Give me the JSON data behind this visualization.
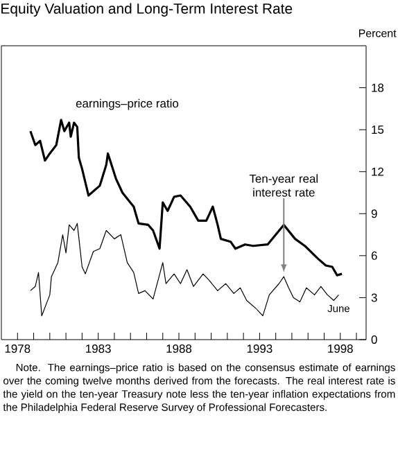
{
  "chart_data": {
    "type": "line",
    "title": "Equity Valuation and Long-Term Interest Rate",
    "ylabel": "Percent",
    "xlim": [
      1977,
      1999.6
    ],
    "ylim": [
      0,
      21
    ],
    "xticks": [
      1978,
      {
        "value": 1979,
        "label": null
      },
      {
        "value": 1980,
        "label": null
      },
      {
        "value": 1981,
        "label": null
      },
      {
        "value": 1982,
        "label": null
      },
      1983,
      {
        "value": 1984,
        "label": null
      },
      {
        "value": 1985,
        "label": null
      },
      {
        "value": 1986,
        "label": null
      },
      {
        "value": 1987,
        "label": null
      },
      1988,
      {
        "value": 1989,
        "label": null
      },
      {
        "value": 1990,
        "label": null
      },
      {
        "value": 1991,
        "label": null
      },
      {
        "value": 1992,
        "label": null
      },
      1993,
      {
        "value": 1994,
        "label": null
      },
      {
        "value": 1995,
        "label": null
      },
      {
        "value": 1996,
        "label": null
      },
      {
        "value": 1997,
        "label": null
      },
      1998,
      {
        "value": 1999,
        "label": null
      }
    ],
    "yticks": [
      0,
      3,
      6,
      9,
      12,
      15,
      18
    ],
    "marker": "none",
    "series": [
      {
        "name": "earnings–price ratio",
        "color": "#000000",
        "x": [
          1978.8,
          1979.1,
          1979.4,
          1979.7,
          1980.0,
          1980.4,
          1980.7,
          1980.9,
          1981.2,
          1981.3,
          1981.5,
          1981.7,
          1981.8,
          1982.0,
          1982.4,
          1983.1,
          1983.5,
          1983.6,
          1984.1,
          1984.5,
          1985.2,
          1985.5,
          1986.1,
          1986.4,
          1986.8,
          1987.0,
          1987.3,
          1987.7,
          1988.1,
          1988.7,
          1989.2,
          1989.7,
          1990.1,
          1990.4,
          1990.6,
          1991.2,
          1991.5,
          1992.1,
          1992.6,
          1993.5,
          1994.5,
          1995.2,
          1995.8,
          1996.6,
          1997.1,
          1997.5,
          1997.8,
          1998.1
        ],
        "values": [
          14.9,
          13.9,
          14.2,
          12.8,
          13.3,
          13.9,
          15.7,
          14.9,
          15.5,
          14.5,
          15.5,
          15.2,
          13.0,
          12.2,
          10.3,
          11.0,
          12.5,
          13.3,
          11.5,
          10.5,
          9.5,
          8.3,
          8.2,
          7.8,
          6.5,
          9.8,
          9.2,
          10.2,
          10.3,
          9.5,
          8.5,
          8.5,
          9.5,
          8.2,
          7.2,
          7.0,
          6.5,
          6.8,
          6.7,
          6.8,
          8.2,
          7.2,
          6.7,
          5.8,
          5.3,
          5.2,
          4.6,
          4.7
        ]
      },
      {
        "color": "#000000",
        "x": [
          1978.8,
          1979.1,
          1979.3,
          1979.5,
          1980.0,
          1980.1,
          1980.5,
          1980.8,
          1981.0,
          1981.2,
          1981.5,
          1981.7,
          1982.0,
          1982.2,
          1982.7,
          1983.1,
          1983.5,
          1984.0,
          1984.4,
          1984.8,
          1985.2,
          1985.5,
          1985.9,
          1986.4,
          1986.7,
          1987.0,
          1987.2,
          1987.7,
          1988.1,
          1988.5,
          1988.9,
          1989.5,
          1989.9,
          1990.4,
          1990.9,
          1991.4,
          1991.8,
          1992.2,
          1992.8,
          1993.2,
          1993.6,
          1994.2,
          1994.5,
          1994.8,
          1995.1,
          1995.5,
          1995.9,
          1996.4,
          1996.8,
          1997.2,
          1997.6,
          1997.9
        ],
        "values": [
          3.5,
          3.8,
          4.8,
          1.7,
          3.2,
          4.5,
          5.5,
          7.5,
          6.2,
          8.2,
          7.8,
          8.3,
          5.2,
          4.7,
          6.3,
          6.5,
          7.8,
          7.2,
          7.5,
          5.5,
          4.8,
          3.3,
          3.5,
          2.9,
          4.2,
          5.5,
          4.0,
          4.7,
          4.0,
          5.0,
          3.8,
          4.7,
          4.2,
          3.5,
          4.0,
          3.3,
          3.7,
          2.8,
          2.2,
          1.7,
          3.2,
          4.0,
          4.5,
          3.7,
          3.0,
          2.7,
          3.7,
          3.2,
          3.8,
          3.2,
          2.8,
          3.2
        ]
      }
    ],
    "annotations": [
      {
        "text": "Ten-year real interest rate",
        "x": 1994.5,
        "y": 4.5
      },
      {
        "text": "June",
        "x": 1997.9,
        "y": 3.2
      },
      "Note. The earnings–price ratio is based on the consensus estimate of earnings over the coming twelve months derived from the forecasts. The real interest rate is the yield on the ten-year Treasury note less the ten-year inflation expectations from the Philadelphia Federal Reserve Survey of Professional Forecasters."
    ]
  }
}
